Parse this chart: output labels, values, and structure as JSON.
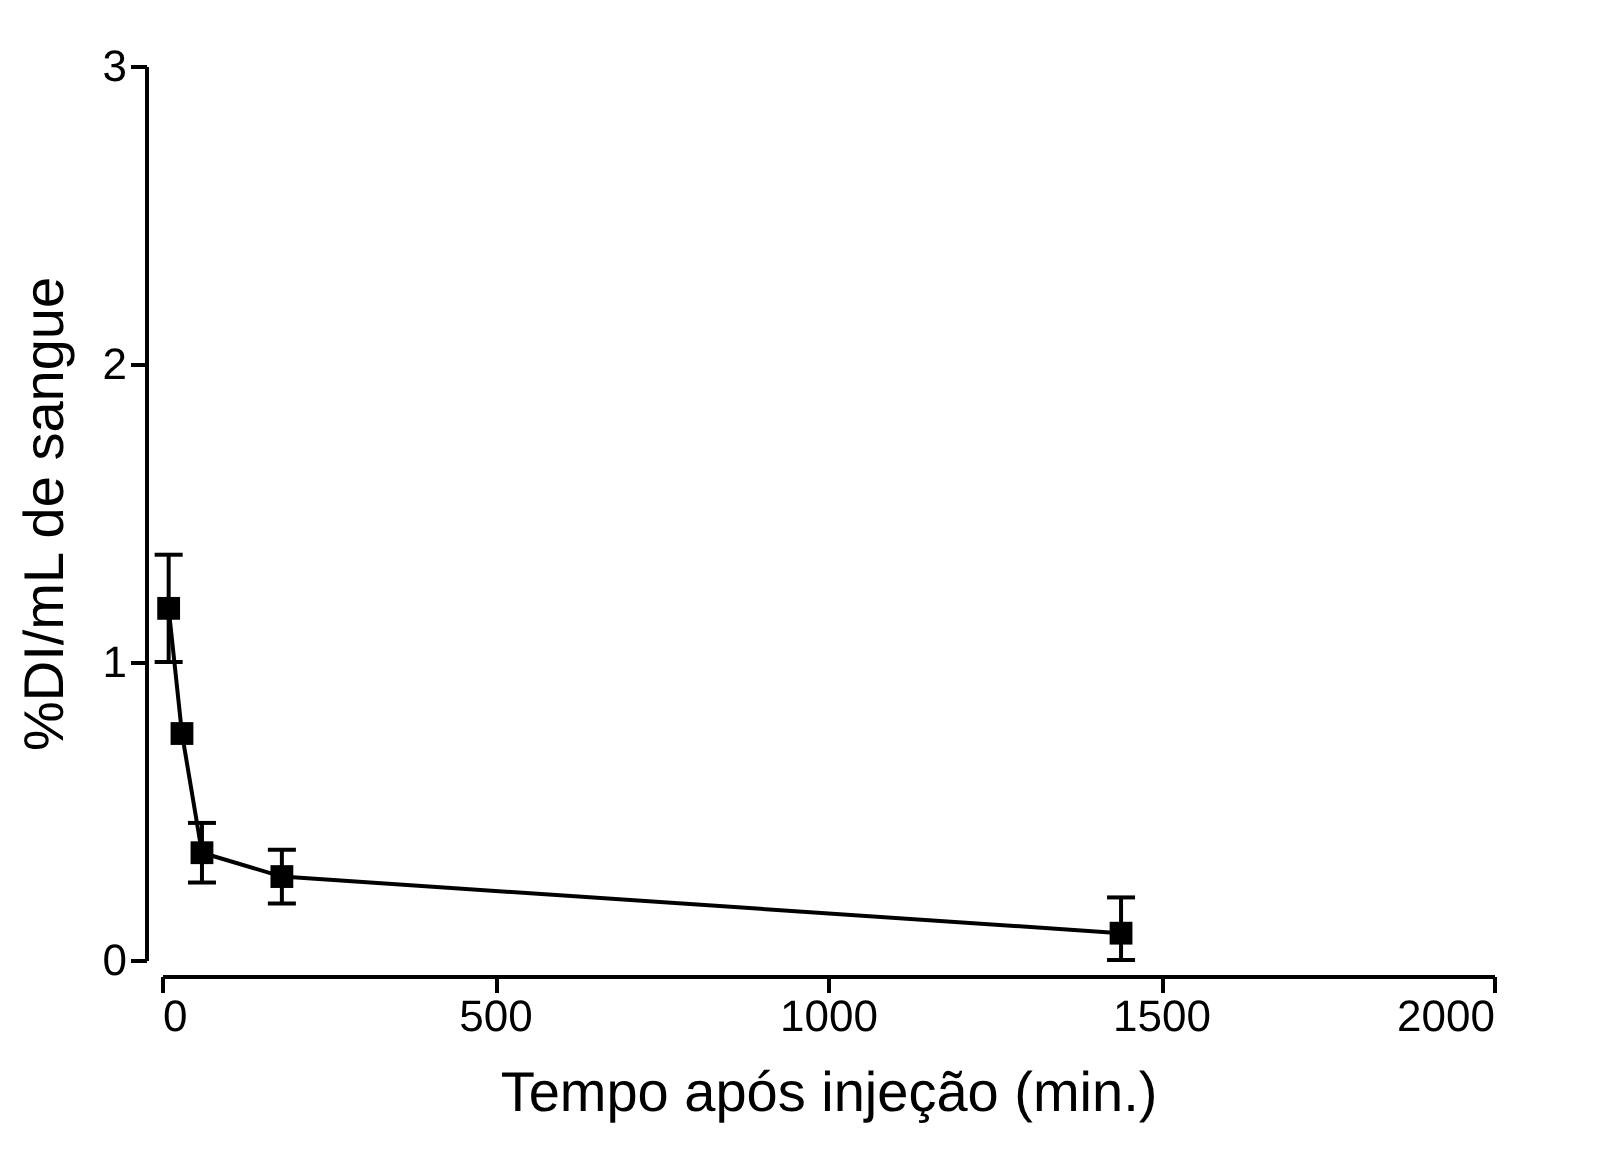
{
  "chart_data": {
    "type": "line",
    "xlabel": "Tempo após injeção (min.)",
    "ylabel": "%DI/mL de sangue",
    "x": [
      10,
      30,
      60,
      180,
      1440
    ],
    "series": [
      {
        "color": "#000000",
        "values": [
          1.18,
          0.76,
          0.36,
          0.28,
          0.09
        ],
        "errors": [
          0.18,
          null,
          0.1,
          0.09,
          [
            0,
            0.21
          ]
        ]
      }
    ],
    "xlim": [
      0,
      2000
    ],
    "xticks": [
      0,
      500,
      1000,
      1500,
      2000
    ],
    "ylim": [
      0,
      3
    ],
    "yticks": [
      0,
      1,
      2,
      3
    ],
    "grid": false,
    "marker": "square",
    "line_style": "solid"
  }
}
